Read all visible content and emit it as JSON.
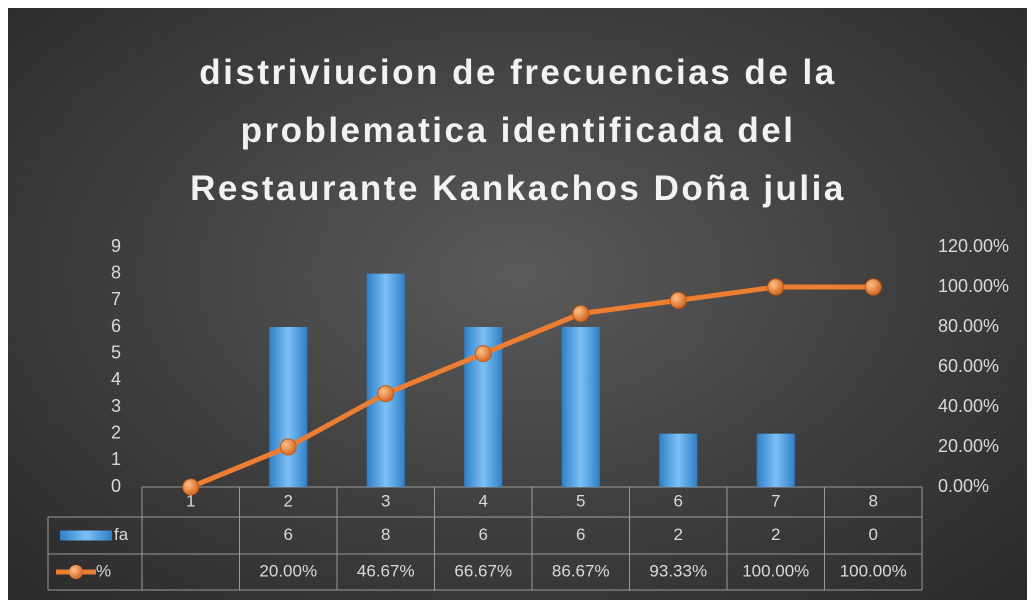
{
  "chart_data": {
    "type": "bar",
    "title": "distriviucion de frecuencias de la problematica identificada del Restaurante Kankachos Doña julia",
    "categories": [
      "1",
      "2",
      "3",
      "4",
      "5",
      "6",
      "7",
      "8"
    ],
    "series": [
      {
        "name": "fa",
        "type": "bar",
        "color": "#4a9de0",
        "values": [
          null,
          6,
          8,
          6,
          6,
          2,
          2,
          0
        ]
      },
      {
        "name": "%",
        "type": "line",
        "axis": "y2",
        "color": "#ed7d31",
        "values": [
          0,
          20,
          46.67,
          66.67,
          86.67,
          93.33,
          100,
          100
        ],
        "value_labels": [
          null,
          "20.00%",
          "46.67%",
          "66.67%",
          "86.67%",
          "93.33%",
          "100.00%",
          "100.00%"
        ]
      }
    ],
    "ylim": [
      0,
      9
    ],
    "yticks": [
      0,
      1,
      2,
      3,
      4,
      5,
      6,
      7,
      8,
      9
    ],
    "y2lim": [
      0,
      120
    ],
    "y2ticks": [
      {
        "value": 0,
        "label": "0.00%"
      },
      {
        "value": 20,
        "label": "20.00%"
      },
      {
        "value": 40,
        "label": "40.00%"
      },
      {
        "value": 60,
        "label": "60.00%"
      },
      {
        "value": 80,
        "label": "80.00%"
      },
      {
        "value": 100,
        "label": "100.00%"
      },
      {
        "value": 120,
        "label": "120.00%"
      }
    ]
  }
}
